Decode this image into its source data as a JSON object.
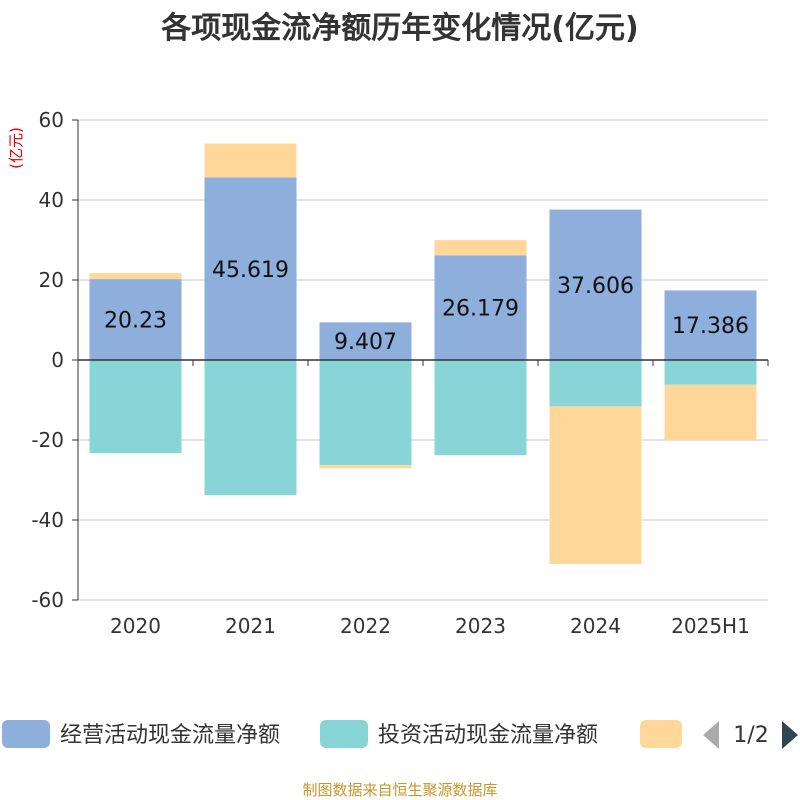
{
  "chart_data": {
    "type": "bar",
    "stacked": true,
    "title": "各项现金流净额历年变化情况(亿元)",
    "yunit": "(亿元)",
    "categories": [
      "2020",
      "2021",
      "2022",
      "2023",
      "2024",
      "2025H1"
    ],
    "ylim": [
      -60,
      60
    ],
    "yticks": [
      60,
      40,
      20,
      0,
      -20,
      -40,
      -60
    ],
    "grid": true,
    "series": [
      {
        "name": "经营活动现金流量净额",
        "color": "#8eaedb",
        "values": [
          20.23,
          45.619,
          9.407,
          26.179,
          37.606,
          17.386
        ],
        "labels": [
          "20.23",
          "45.619",
          "9.407",
          "26.179",
          "37.606",
          "17.386"
        ]
      },
      {
        "name": "投资活动现金流量净额",
        "color": "#88d5d8",
        "values": [
          -23.3,
          -33.8,
          -26.3,
          -23.8,
          -11.6,
          -6.2
        ]
      },
      {
        "name": "",
        "color": "#ffd899",
        "values": [
          1.5,
          8.5,
          -0.8,
          3.8,
          -39.4,
          -13.8
        ]
      }
    ]
  },
  "legend": {
    "page": "1/2"
  },
  "source": "制图数据来自恒生聚源数据库"
}
